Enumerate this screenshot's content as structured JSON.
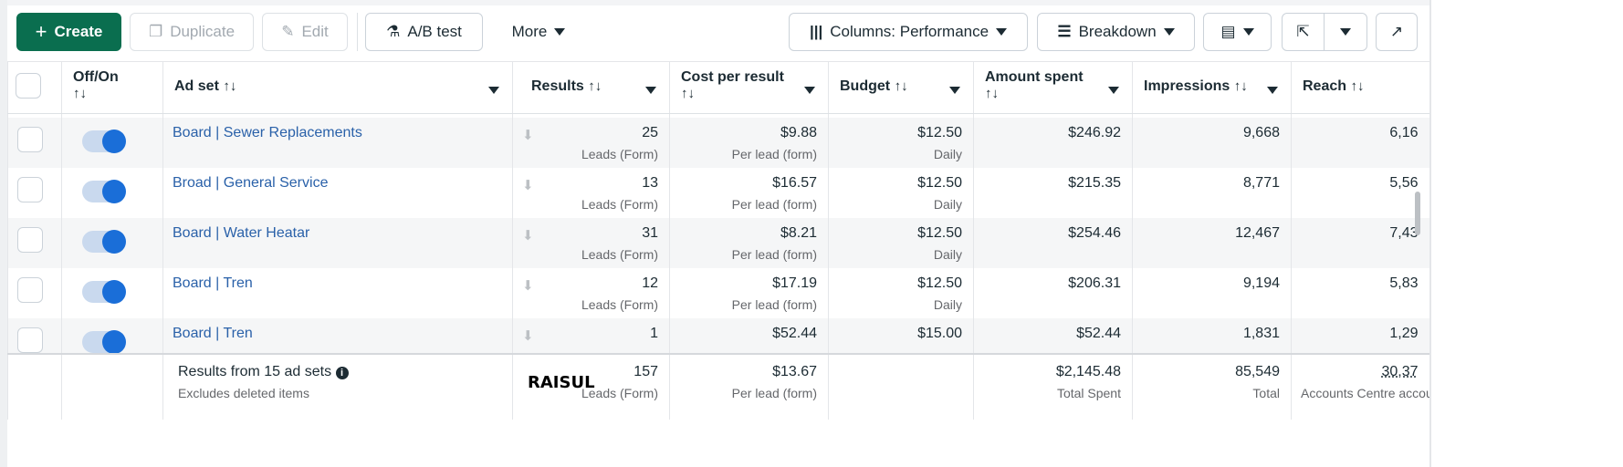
{
  "toolbar": {
    "create": "Create",
    "duplicate": "Duplicate",
    "edit": "Edit",
    "ab_test": "A/B test",
    "more": "More",
    "columns": "Columns: Performance",
    "breakdown": "Breakdown"
  },
  "headers": {
    "off_on": "Off/On",
    "ad_set": "Ad set",
    "results": "Results",
    "cost_per_result": "Cost per result",
    "budget": "Budget",
    "amount_spent": "Amount spent",
    "impressions": "Impressions",
    "reach": "Reach",
    "sort": "↑↓"
  },
  "rows": [
    {
      "name": "Board | Sewer Replacements",
      "results": "25",
      "results_sub": "Leads (Form)",
      "cost": "$9.88",
      "cost_sub": "Per lead (form)",
      "budget": "$12.50",
      "budget_sub": "Daily",
      "spent": "$246.92",
      "impressions": "9,668",
      "reach": "6,16"
    },
    {
      "name": "Broad | General Service",
      "results": "13",
      "results_sub": "Leads (Form)",
      "cost": "$16.57",
      "cost_sub": "Per lead (form)",
      "budget": "$12.50",
      "budget_sub": "Daily",
      "spent": "$215.35",
      "impressions": "8,771",
      "reach": "5,56"
    },
    {
      "name": "Board | Water Heatar",
      "results": "31",
      "results_sub": "Leads (Form)",
      "cost": "$8.21",
      "cost_sub": "Per lead (form)",
      "budget": "$12.50",
      "budget_sub": "Daily",
      "spent": "$254.46",
      "impressions": "12,467",
      "reach": "7,43"
    },
    {
      "name": "Board | Tren",
      "results": "12",
      "results_sub": "Leads (Form)",
      "cost": "$17.19",
      "cost_sub": "Per lead (form)",
      "budget": "$12.50",
      "budget_sub": "Daily",
      "spent": "$206.31",
      "impressions": "9,194",
      "reach": "5,83"
    },
    {
      "name": "Board | Tren",
      "results": "1",
      "cost": "$52.44",
      "budget": "$15.00",
      "spent": "$52.44",
      "impressions": "1,831",
      "reach": "1,29"
    }
  ],
  "footer": {
    "label": "Results from 15 ad sets",
    "note": "Excludes deleted items",
    "watermark": "RAISUL",
    "results": "157",
    "results_sub": "Leads (Form)",
    "cost": "$13.67",
    "cost_sub": "Per lead (form)",
    "spent": "$2,145.48",
    "spent_sub": "Total Spent",
    "impressions": "85,549",
    "impressions_sub": "Total",
    "reach": "30,37",
    "reach_sub": "Accounts Centre accounts"
  }
}
